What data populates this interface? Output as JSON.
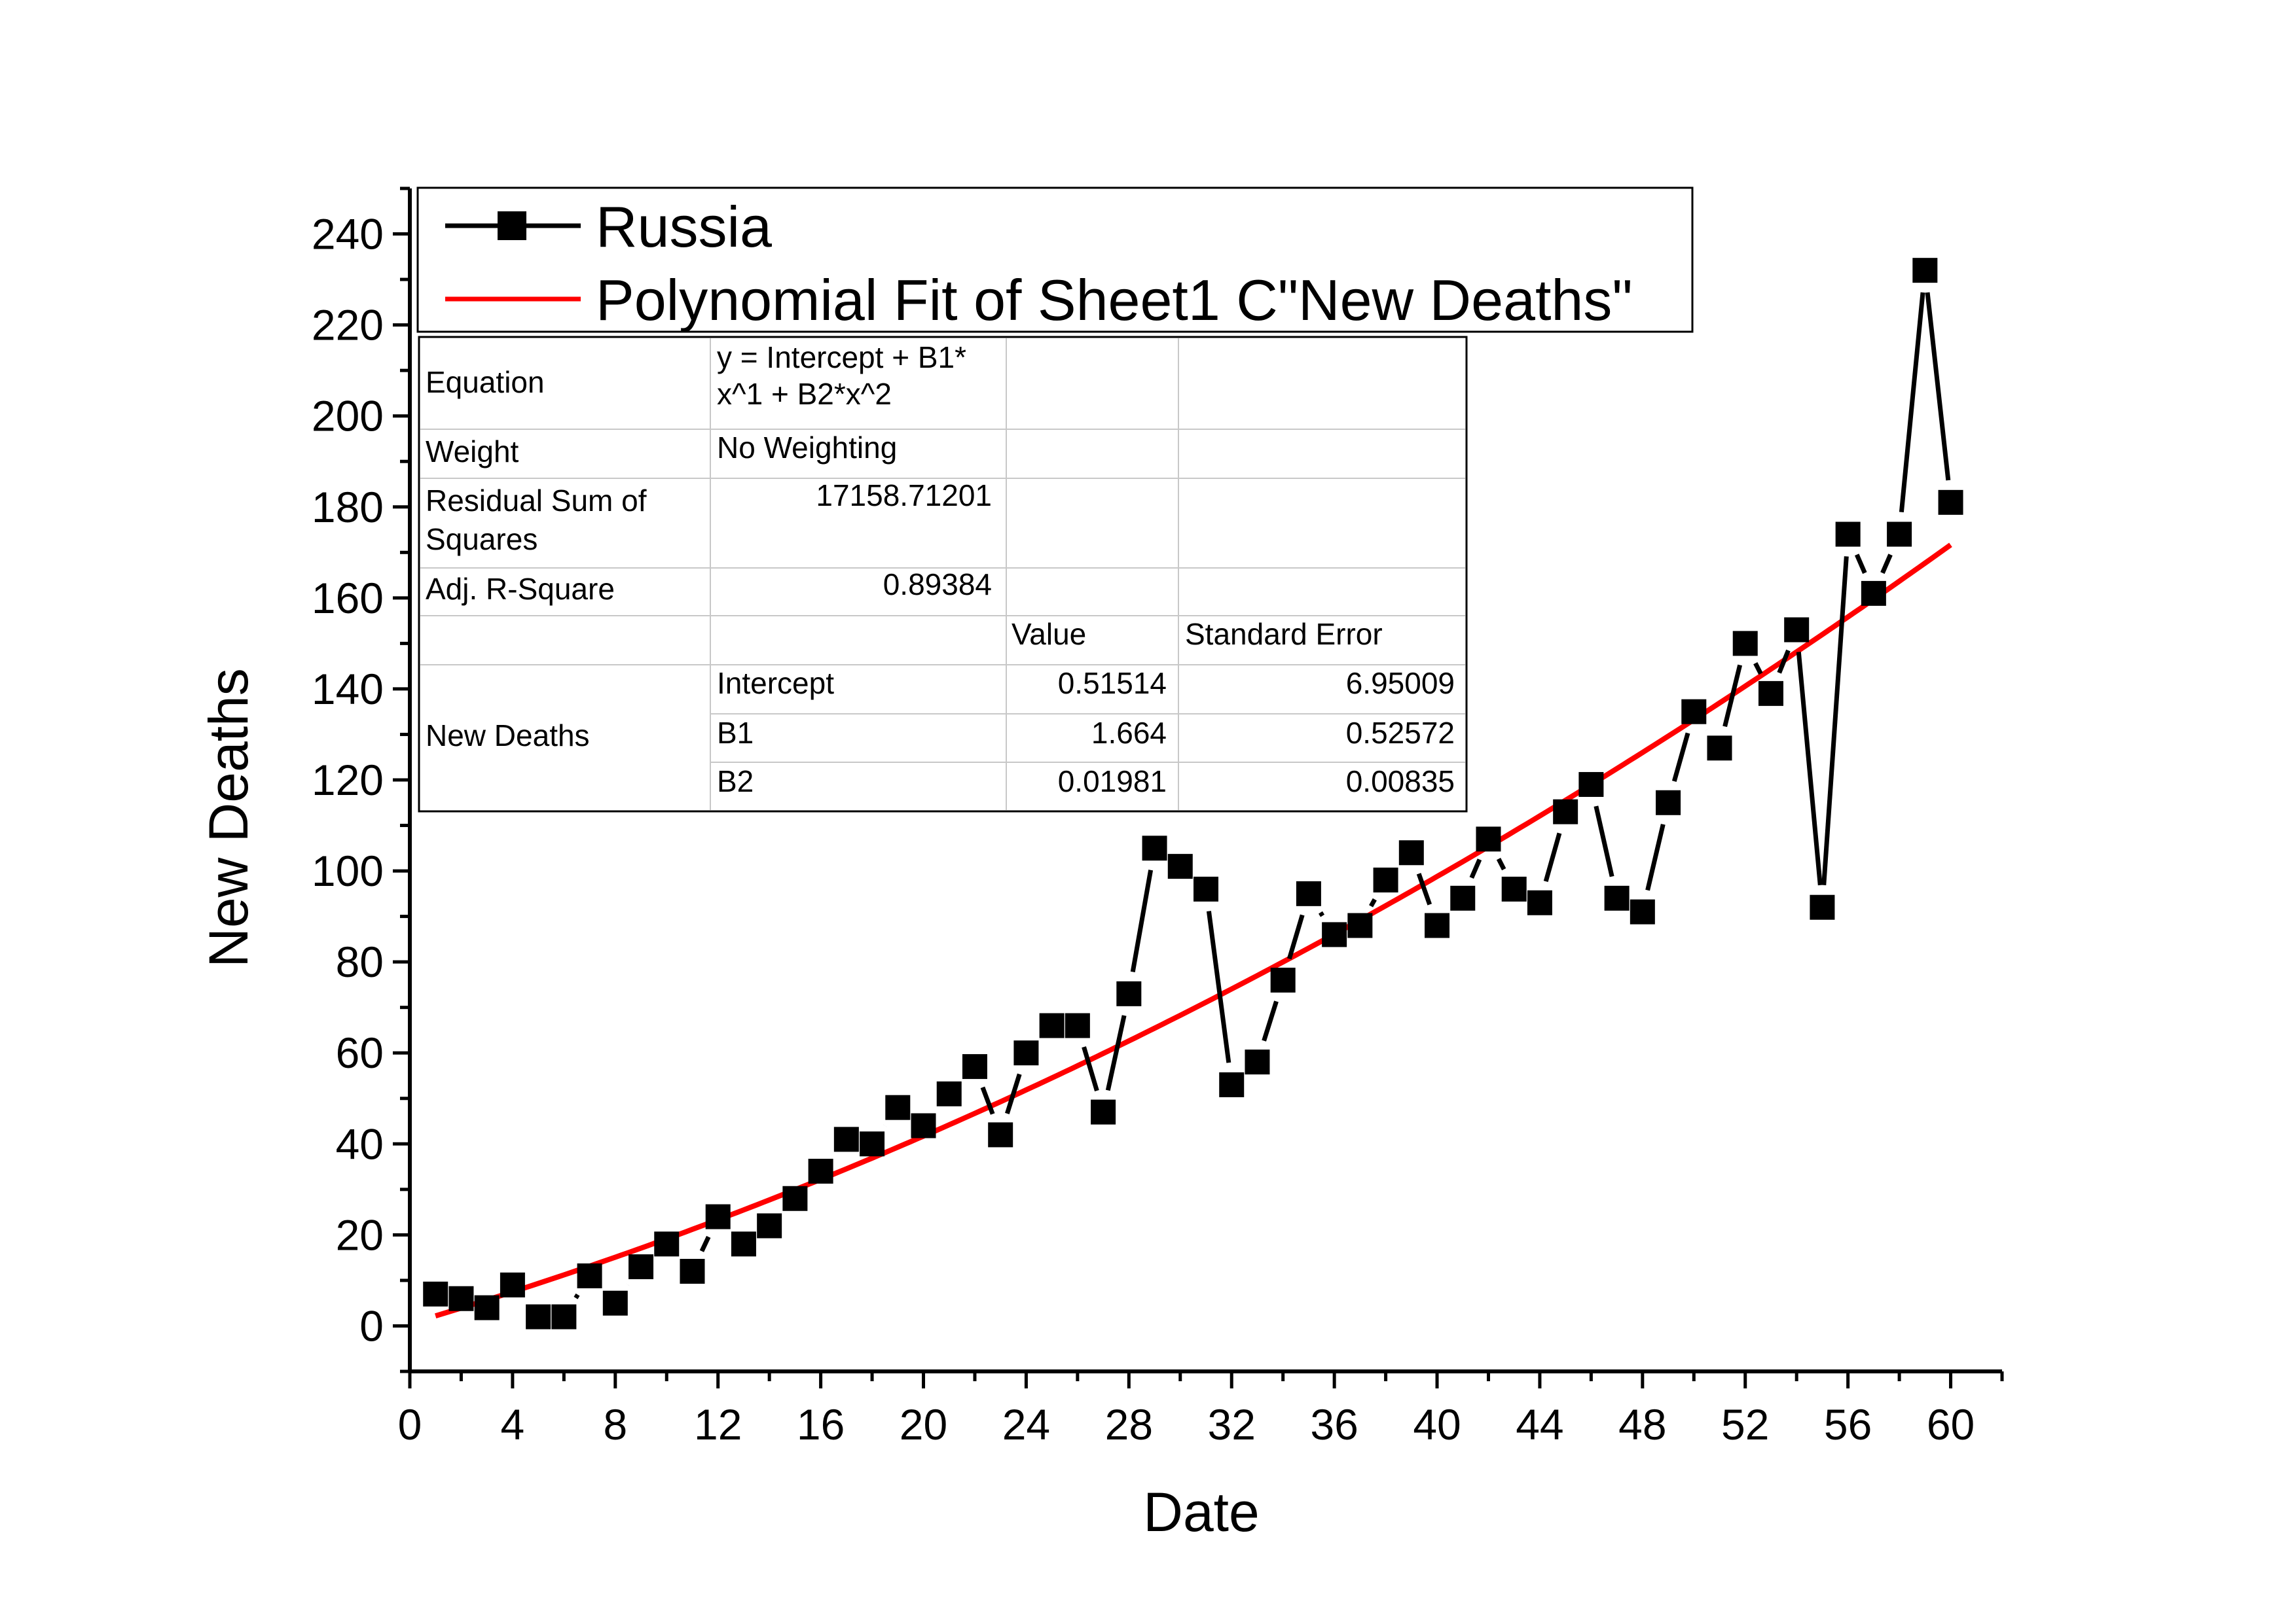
{
  "chart_data": {
    "type": "scatter",
    "xlabel": "Date",
    "ylabel": "New Deaths",
    "xlim": [
      0,
      62
    ],
    "ylim": [
      -10,
      250
    ],
    "xticks": [
      0,
      4,
      8,
      12,
      16,
      20,
      24,
      28,
      32,
      36,
      40,
      44,
      48,
      52,
      56,
      60
    ],
    "yticks": [
      0,
      20,
      40,
      60,
      80,
      100,
      120,
      140,
      160,
      180,
      200,
      220,
      240
    ],
    "grid": false,
    "legend_position": "top-left",
    "series": [
      {
        "name": "Russia",
        "color": "#000000",
        "marker": "square",
        "line": "connected",
        "x": [
          1,
          2,
          3,
          4,
          5,
          6,
          7,
          8,
          9,
          10,
          11,
          12,
          13,
          14,
          15,
          16,
          17,
          18,
          19,
          20,
          21,
          22,
          23,
          24,
          25,
          26,
          27,
          28,
          29,
          30,
          31,
          32,
          33,
          34,
          35,
          36,
          37,
          38,
          39,
          40,
          41,
          42,
          43,
          44,
          45,
          46,
          47,
          48,
          49,
          50,
          51,
          52,
          53,
          54,
          55,
          56,
          57,
          58,
          59,
          60
        ],
        "y": [
          7,
          6,
          4,
          9,
          2,
          2,
          11,
          5,
          13,
          18,
          12,
          24,
          18,
          22,
          28,
          34,
          41,
          40,
          48,
          44,
          51,
          57,
          42,
          60,
          66,
          66,
          47,
          73,
          105,
          101,
          96,
          53,
          58,
          76,
          95,
          86,
          88,
          98,
          104,
          88,
          94,
          107,
          96,
          93,
          113,
          119,
          94,
          91,
          115,
          135,
          127,
          150,
          139,
          153,
          92,
          174,
          161,
          174,
          232,
          181
        ]
      },
      {
        "name": "Polynomial Fit of Sheet1 C\"New Deaths\"",
        "color": "#ff0000",
        "type": "fit",
        "x_range": [
          1,
          60
        ],
        "intercept": 0.51514,
        "b1": 1.664,
        "b2": 0.01981
      }
    ],
    "fit_table": {
      "rows": [
        {
          "label": "Equation",
          "c1": "y = Intercept + B1*x^1 + B2*x^2",
          "c2": "",
          "c3": ""
        },
        {
          "label": "Weight",
          "c1": "No Weighting",
          "c2": "",
          "c3": ""
        },
        {
          "label": "Residual Sum of Squares",
          "c1": "17158.71201",
          "c2": "",
          "c3": ""
        },
        {
          "label": "Adj. R-Square",
          "c1": "0.89384",
          "c2": "",
          "c3": ""
        },
        {
          "label": "",
          "c1": "",
          "c2": "Value",
          "c3": "Standard Error"
        },
        {
          "label": "New Deaths",
          "c1": "Intercept",
          "c2": "0.51514",
          "c3": "6.95009"
        },
        {
          "label": "",
          "c1": "B1",
          "c2": "1.664",
          "c3": "0.52572"
        },
        {
          "label": "",
          "c1": "B2",
          "c2": "0.01981",
          "c3": "0.00835"
        }
      ]
    }
  },
  "legend": {
    "items": [
      "Russia",
      "Polynomial Fit of Sheet1 C\"New Deaths\""
    ]
  },
  "table": {
    "equation_label": "Equation",
    "equation_line1": "y = Intercept + B1*",
    "equation_line2": "x^1 + B2*x^2",
    "weight_label": "Weight",
    "weight_value": "No Weighting",
    "rss_label_line1": "Residual Sum of",
    "rss_label_line2": "Squares",
    "rss_value": "17158.71201",
    "adjr_label": "Adj. R-Square",
    "adjr_value": "0.89384",
    "value_header": "Value",
    "se_header": "Standard Error",
    "group_label": "New Deaths",
    "params": [
      {
        "name": "Intercept",
        "value": "0.51514",
        "se": "6.95009"
      },
      {
        "name": "B1",
        "value": "1.664",
        "se": "0.52572"
      },
      {
        "name": "B2",
        "value": "0.01981",
        "se": "0.00835"
      }
    ]
  }
}
